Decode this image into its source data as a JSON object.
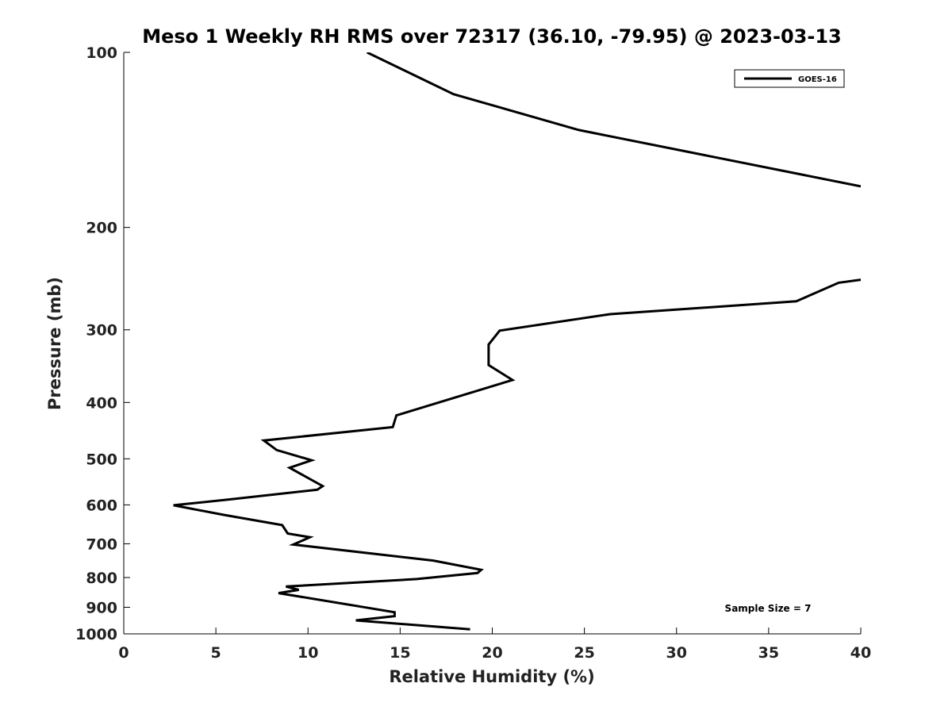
{
  "chart_data": {
    "type": "line",
    "title": "Meso 1 Weekly RH RMS over 72317 (36.10, -79.95) @ 2023-03-13",
    "xlabel": "Relative Humidity (%)",
    "ylabel": "Pressure (mb)",
    "xlim": [
      0,
      40
    ],
    "ylim": [
      1000,
      100
    ],
    "yscale": "log",
    "grid": false,
    "legend_position": "top-right",
    "x_ticks": [
      "0",
      "5",
      "10",
      "15",
      "20",
      "25",
      "30",
      "35",
      "40"
    ],
    "y_ticks": [
      "100",
      "200",
      "300",
      "400",
      "500",
      "600",
      "700",
      "800",
      "900",
      "1000"
    ],
    "annotation": "Sample Size = 7",
    "series": [
      {
        "name": "GOES-16",
        "color": "#000000",
        "segments": [
          [
            {
              "x": 13.2,
              "y": 100
            },
            {
              "x": 17.9,
              "y": 118
            },
            {
              "x": 24.7,
              "y": 136
            },
            {
              "x": 40.0,
              "y": 170
            }
          ],
          [
            {
              "x": 40.0,
              "y": 246
            },
            {
              "x": 38.8,
              "y": 249
            },
            {
              "x": 36.5,
              "y": 268
            },
            {
              "x": 26.4,
              "y": 282
            },
            {
              "x": 20.4,
              "y": 301
            },
            {
              "x": 19.8,
              "y": 318
            },
            {
              "x": 19.8,
              "y": 345
            },
            {
              "x": 21.1,
              "y": 366
            },
            {
              "x": 14.8,
              "y": 421
            },
            {
              "x": 14.6,
              "y": 441
            },
            {
              "x": 7.6,
              "y": 465
            },
            {
              "x": 8.3,
              "y": 483
            },
            {
              "x": 10.2,
              "y": 503
            },
            {
              "x": 9.0,
              "y": 518
            },
            {
              "x": 10.8,
              "y": 557
            },
            {
              "x": 10.5,
              "y": 565
            },
            {
              "x": 5.8,
              "y": 587
            },
            {
              "x": 2.7,
              "y": 601
            },
            {
              "x": 5.4,
              "y": 624
            },
            {
              "x": 8.6,
              "y": 650
            },
            {
              "x": 8.9,
              "y": 672
            },
            {
              "x": 10.1,
              "y": 682
            },
            {
              "x": 9.2,
              "y": 702
            },
            {
              "x": 16.8,
              "y": 748
            },
            {
              "x": 19.4,
              "y": 776
            },
            {
              "x": 19.2,
              "y": 786
            },
            {
              "x": 15.9,
              "y": 805
            },
            {
              "x": 8.8,
              "y": 829
            },
            {
              "x": 9.5,
              "y": 840
            },
            {
              "x": 8.4,
              "y": 851
            },
            {
              "x": 12.9,
              "y": 898
            },
            {
              "x": 14.7,
              "y": 918
            },
            {
              "x": 14.7,
              "y": 932
            },
            {
              "x": 12.6,
              "y": 948
            },
            {
              "x": 18.8,
              "y": 982
            }
          ]
        ]
      }
    ]
  }
}
